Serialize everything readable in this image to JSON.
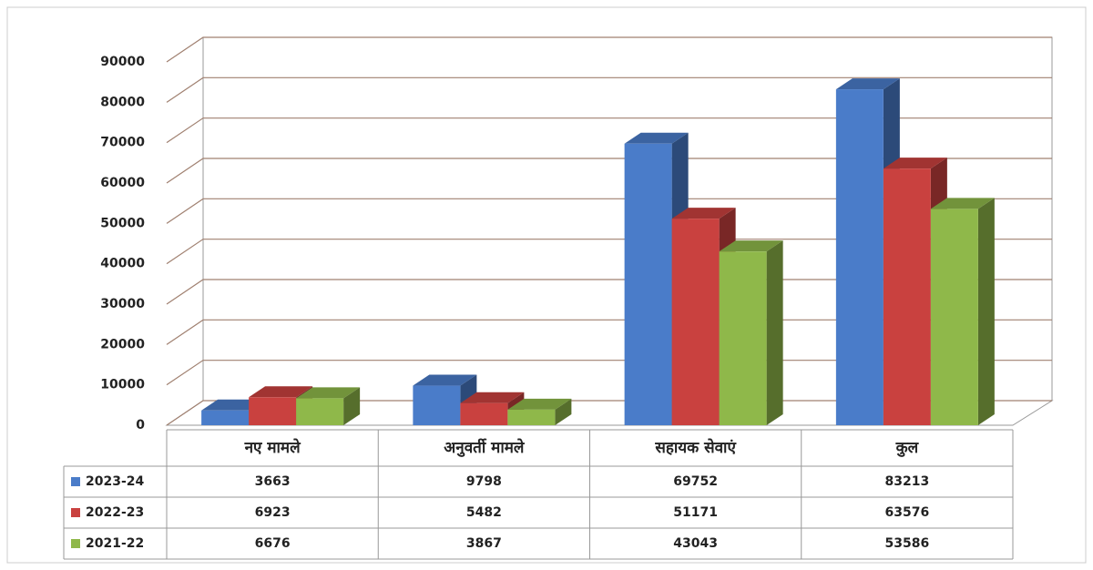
{
  "chart_data": {
    "type": "bar",
    "categories": [
      "नए मामले",
      "अनुवर्ती मामले",
      "सहायक सेवाएं",
      "कुल"
    ],
    "series": [
      {
        "name": "2023-24",
        "color": "#4a7cc9",
        "values": [
          3663,
          9798,
          69752,
          83213
        ]
      },
      {
        "name": "2022-23",
        "color": "#c9413f",
        "values": [
          6923,
          5482,
          51171,
          63576
        ]
      },
      {
        "name": "2021-22",
        "color": "#8fb84a",
        "values": [
          6676,
          3867,
          43043,
          53586
        ]
      }
    ],
    "ylim": [
      0,
      90000
    ],
    "yticks": [
      0,
      10000,
      20000,
      30000,
      40000,
      50000,
      60000,
      70000,
      80000,
      90000
    ],
    "grid": true
  }
}
